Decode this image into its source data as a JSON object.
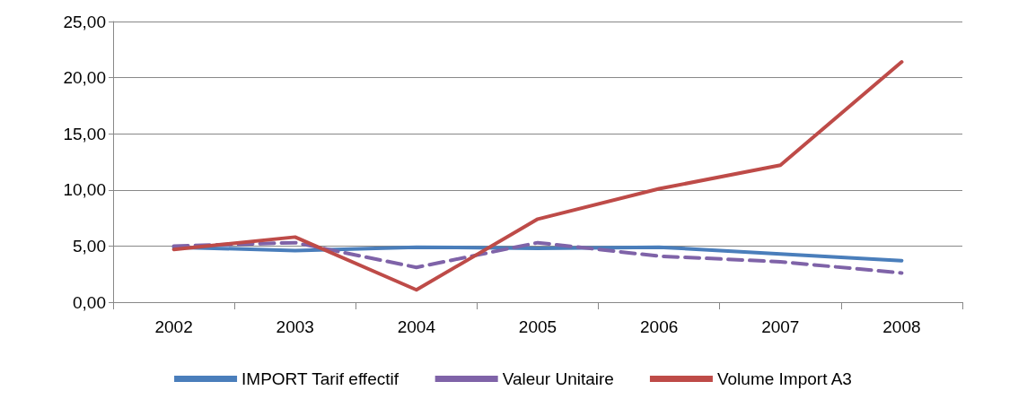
{
  "chart_data": {
    "type": "line",
    "categories": [
      "2002",
      "2003",
      "2004",
      "2005",
      "2006",
      "2007",
      "2008"
    ],
    "series": [
      {
        "name": "IMPORT Tarif effectif",
        "color": "#4a7ebb",
        "line_style": "solid",
        "values": [
          4.9,
          4.6,
          4.9,
          4.8,
          4.9,
          4.3,
          3.7
        ]
      },
      {
        "name": "Valeur Unitaire",
        "color": "#7f63a8",
        "line_style": "dashed",
        "values": [
          5.0,
          5.3,
          3.1,
          5.3,
          4.1,
          3.6,
          2.6
        ]
      },
      {
        "name": "Volume Import A3",
        "color": "#be4b48",
        "line_style": "solid",
        "values": [
          4.7,
          5.8,
          1.1,
          7.4,
          10.1,
          12.2,
          21.4
        ]
      }
    ],
    "ylim": [
      0,
      25
    ],
    "yticks": [
      {
        "value": 0,
        "label": "0,00"
      },
      {
        "value": 5,
        "label": "5,00"
      },
      {
        "value": 10,
        "label": "10,00"
      },
      {
        "value": 15,
        "label": "15,00"
      },
      {
        "value": 20,
        "label": "20,00"
      },
      {
        "value": 25,
        "label": "25,00"
      }
    ],
    "grid": "y",
    "legend": "bottom",
    "marker": "none"
  }
}
